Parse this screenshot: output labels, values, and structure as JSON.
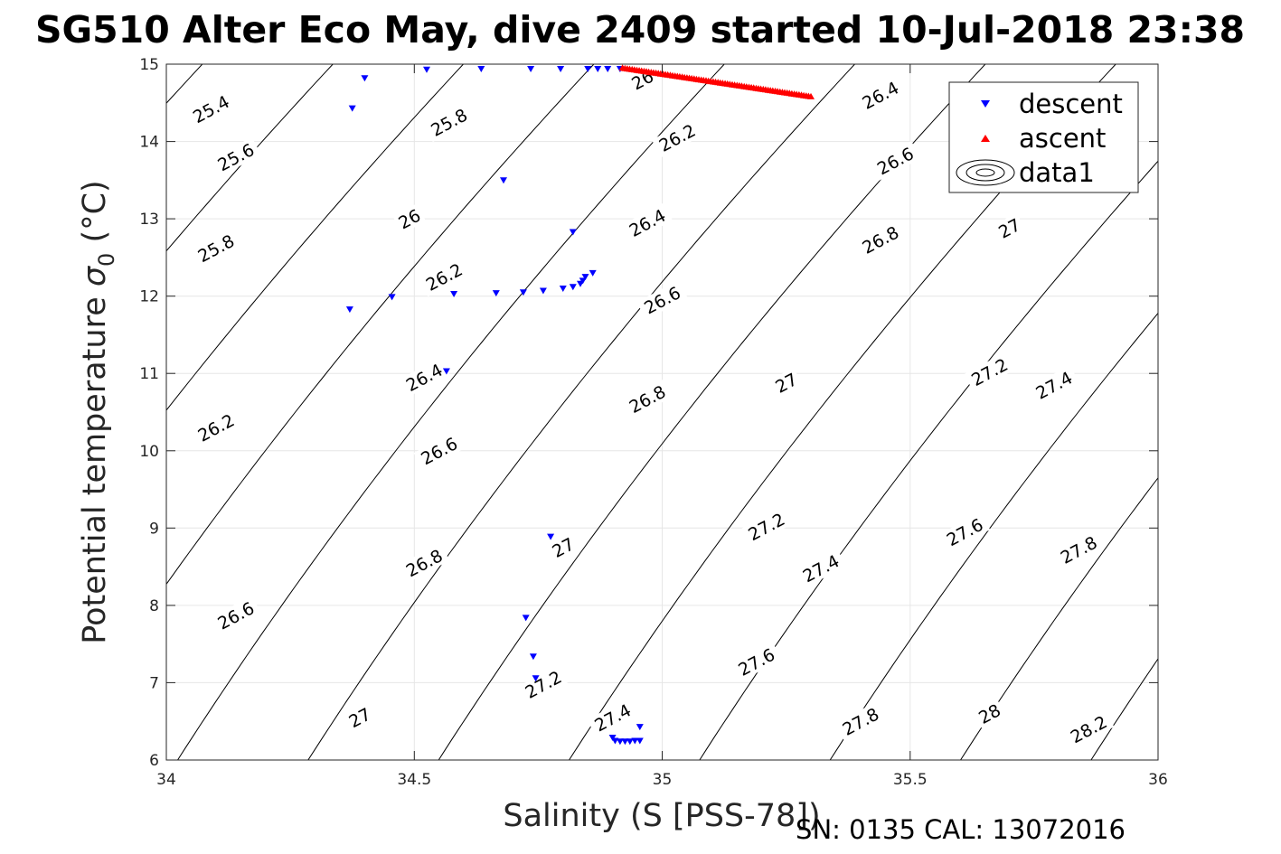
{
  "chart_data": {
    "type": "scatter",
    "title": "SG510 Alter Eco May, dive 2409 started 10-Jul-2018 23:38",
    "xlabel": "Salinity (S [PSS-78])",
    "ylabel_main": "Potential temperature ",
    "ylabel_sigma": "σ",
    "ylabel_sub": "0",
    "ylabel_unit": " (°C)",
    "footer": "SN: 0135  CAL: 13072016",
    "xlim": [
      34,
      36
    ],
    "ylim": [
      6,
      15
    ],
    "x_ticks": [
      34,
      34.5,
      35,
      35.5,
      36
    ],
    "x_tick_labels": [
      "34",
      "34.5",
      "35",
      "35.5",
      "36"
    ],
    "y_ticks": [
      6,
      7,
      8,
      9,
      10,
      11,
      12,
      13,
      14,
      15
    ],
    "y_tick_labels": [
      "6",
      "7",
      "8",
      "9",
      "10",
      "11",
      "12",
      "13",
      "14",
      "15"
    ],
    "grid": true,
    "legend_position": "top-right",
    "series": [
      {
        "name": "descent",
        "marker": "triangle-down",
        "color": "#0000ff",
        "points": [
          [
            34.37,
            11.82
          ],
          [
            34.375,
            14.42
          ],
          [
            34.4,
            14.81
          ],
          [
            34.455,
            11.98
          ],
          [
            34.525,
            14.92
          ],
          [
            34.565,
            11.02
          ],
          [
            34.58,
            12.02
          ],
          [
            34.635,
            14.93
          ],
          [
            34.665,
            12.03
          ],
          [
            34.68,
            13.49
          ],
          [
            34.72,
            12.04
          ],
          [
            34.735,
            14.93
          ],
          [
            34.725,
            7.83
          ],
          [
            34.74,
            7.33
          ],
          [
            34.745,
            7.05
          ],
          [
            34.76,
            12.06
          ],
          [
            34.775,
            8.88
          ],
          [
            34.8,
            12.09
          ],
          [
            34.795,
            14.93
          ],
          [
            34.82,
            12.82
          ],
          [
            34.82,
            12.11
          ],
          [
            34.835,
            12.15
          ],
          [
            34.84,
            12.19
          ],
          [
            34.845,
            12.24
          ],
          [
            34.86,
            12.29
          ],
          [
            34.85,
            14.93
          ],
          [
            34.87,
            14.93
          ],
          [
            34.89,
            14.93
          ],
          [
            34.915,
            14.93
          ],
          [
            34.9,
            6.28
          ],
          [
            34.905,
            6.24
          ],
          [
            34.915,
            6.23
          ],
          [
            34.925,
            6.23
          ],
          [
            34.935,
            6.23
          ],
          [
            34.945,
            6.24
          ],
          [
            34.955,
            6.24
          ],
          [
            34.955,
            6.42
          ]
        ]
      },
      {
        "name": "ascent",
        "marker": "triangle-up",
        "color": "#ff0000",
        "x_range": [
          34.92,
          35.3
        ],
        "y_range": [
          14.95,
          14.58
        ],
        "count": 80
      },
      {
        "name": "data1",
        "marker": "contour",
        "color": "#000000",
        "levels": [
          25.4,
          25.6,
          25.8,
          26,
          26.2,
          26.4,
          26.6,
          26.8,
          27,
          27.2,
          27.4,
          27.6,
          27.8,
          28,
          28.2
        ],
        "labels": [
          {
            "text": "25.4",
            "x": 34.09,
            "y": 14.42
          },
          {
            "text": "25.6",
            "x": 34.14,
            "y": 13.8
          },
          {
            "text": "25.8",
            "x": 34.57,
            "y": 14.25
          },
          {
            "text": "25.8",
            "x": 34.1,
            "y": 12.62
          },
          {
            "text": "26",
            "x": 34.49,
            "y": 13.0
          },
          {
            "text": "26",
            "x": 34.96,
            "y": 14.8
          },
          {
            "text": "26.2",
            "x": 34.56,
            "y": 12.25
          },
          {
            "text": "26.2",
            "x": 35.03,
            "y": 14.05
          },
          {
            "text": "26.2",
            "x": 34.1,
            "y": 10.3
          },
          {
            "text": "26.4",
            "x": 34.52,
            "y": 10.95
          },
          {
            "text": "26.4",
            "x": 34.97,
            "y": 12.95
          },
          {
            "text": "26.4",
            "x": 35.44,
            "y": 14.6
          },
          {
            "text": "26.6",
            "x": 34.14,
            "y": 7.87
          },
          {
            "text": "26.6",
            "x": 34.55,
            "y": 10.0
          },
          {
            "text": "26.6",
            "x": 35.0,
            "y": 11.95
          },
          {
            "text": "26.6",
            "x": 35.47,
            "y": 13.75
          },
          {
            "text": "26.8",
            "x": 34.52,
            "y": 8.55
          },
          {
            "text": "26.8",
            "x": 34.97,
            "y": 10.67
          },
          {
            "text": "26.8",
            "x": 35.44,
            "y": 12.73
          },
          {
            "text": "27",
            "x": 34.39,
            "y": 6.55
          },
          {
            "text": "27",
            "x": 34.8,
            "y": 8.75
          },
          {
            "text": "27",
            "x": 35.25,
            "y": 10.88
          },
          {
            "text": "27",
            "x": 35.7,
            "y": 12.88
          },
          {
            "text": "27.2",
            "x": 34.76,
            "y": 6.98
          },
          {
            "text": "27.2",
            "x": 35.21,
            "y": 9.02
          },
          {
            "text": "27.2",
            "x": 35.66,
            "y": 11.02
          },
          {
            "text": "27.4",
            "x": 34.9,
            "y": 6.55
          },
          {
            "text": "27.4",
            "x": 35.32,
            "y": 8.48
          },
          {
            "text": "27.4",
            "x": 35.79,
            "y": 10.85
          },
          {
            "text": "27.6",
            "x": 35.19,
            "y": 7.27
          },
          {
            "text": "27.6",
            "x": 35.61,
            "y": 8.95
          },
          {
            "text": "27.8",
            "x": 35.4,
            "y": 6.5
          },
          {
            "text": "27.8",
            "x": 35.84,
            "y": 8.72
          },
          {
            "text": "28",
            "x": 35.66,
            "y": 6.6
          },
          {
            "text": "28.2",
            "x": 35.86,
            "y": 6.4
          }
        ]
      }
    ]
  }
}
